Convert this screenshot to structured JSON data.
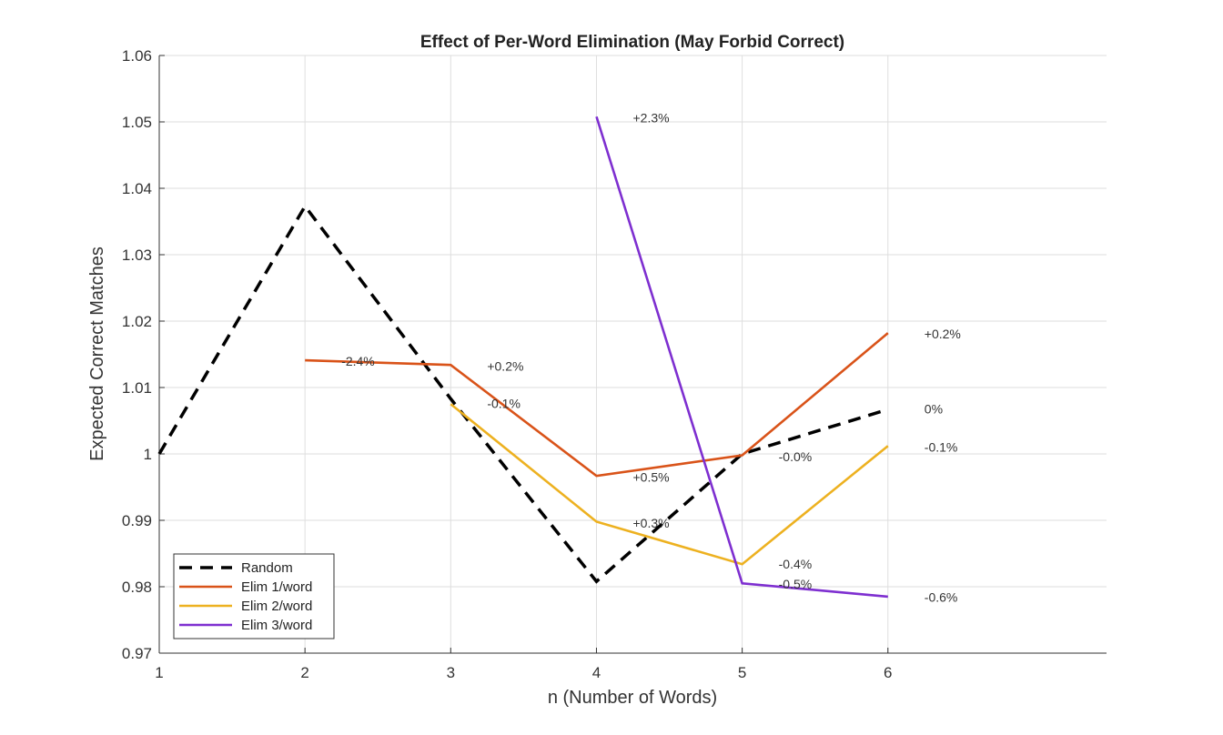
{
  "chart_data": {
    "type": "line",
    "title": "Effect of Per-Word Elimination (May Forbid Correct)",
    "xlabel": "n (Number of Words)",
    "ylabel": "Expected Correct Matches",
    "xlim": [
      1,
      7.5
    ],
    "ylim": [
      0.97,
      1.06
    ],
    "xticks": [
      1,
      2,
      3,
      4,
      5,
      6
    ],
    "xtick_labels": [
      "1",
      "2",
      "3",
      "4",
      "5",
      "6"
    ],
    "yticks": [
      0.97,
      0.98,
      0.99,
      1.0,
      1.01,
      1.02,
      1.03,
      1.04,
      1.05,
      1.06
    ],
    "ytick_labels": [
      "0.97",
      "0.98",
      "0.99",
      "1",
      "1.01",
      "1.02",
      "1.03",
      "1.04",
      "1.05",
      "1.06"
    ],
    "grid": true,
    "legend_position": "bottom-left",
    "series": [
      {
        "name": "Random",
        "color": "#000000",
        "dashed": true,
        "x": [
          1,
          2,
          3,
          4,
          5,
          6
        ],
        "y": [
          1.0,
          1.0373,
          1.0083,
          0.9808,
          1.0,
          1.0067
        ]
      },
      {
        "name": "Elim 1/word",
        "color": "#D95319",
        "dashed": false,
        "x": [
          2,
          3,
          4,
          5,
          6
        ],
        "y": [
          1.0141,
          1.0134,
          0.9967,
          0.9998,
          1.0182
        ]
      },
      {
        "name": "Elim 2/word",
        "color": "#EDB120",
        "dashed": false,
        "x": [
          3,
          4,
          5,
          6
        ],
        "y": [
          1.0075,
          0.9898,
          0.9834,
          1.0012
        ]
      },
      {
        "name": "Elim 3/word",
        "color": "#7E2FD0",
        "dashed": false,
        "x": [
          4,
          5,
          6
        ],
        "y": [
          1.0508,
          0.9805,
          0.9785
        ]
      }
    ],
    "annotations": [
      {
        "text": "-2.4%",
        "x": 2.25,
        "y": 1.014
      },
      {
        "text": "+0.2%",
        "x": 3.25,
        "y": 1.0132
      },
      {
        "text": "-0.1%",
        "x": 3.25,
        "y": 1.0076
      },
      {
        "text": "+2.3%",
        "x": 4.25,
        "y": 1.0506
      },
      {
        "text": "+0.5%",
        "x": 4.25,
        "y": 0.9965
      },
      {
        "text": "+0.3%",
        "x": 4.25,
        "y": 0.9896
      },
      {
        "text": "-0.0%",
        "x": 5.25,
        "y": 0.9996
      },
      {
        "text": "-0.4%",
        "x": 5.25,
        "y": 0.9834
      },
      {
        "text": "-0.5%",
        "x": 5.25,
        "y": 0.9804
      },
      {
        "text": "+0.2%",
        "x": 6.25,
        "y": 1.0181
      },
      {
        "text": "0%",
        "x": 6.25,
        "y": 1.0068
      },
      {
        "text": "-0.1%",
        "x": 6.25,
        "y": 1.001
      },
      {
        "text": "-0.6%",
        "x": 6.25,
        "y": 0.9784
      }
    ]
  }
}
